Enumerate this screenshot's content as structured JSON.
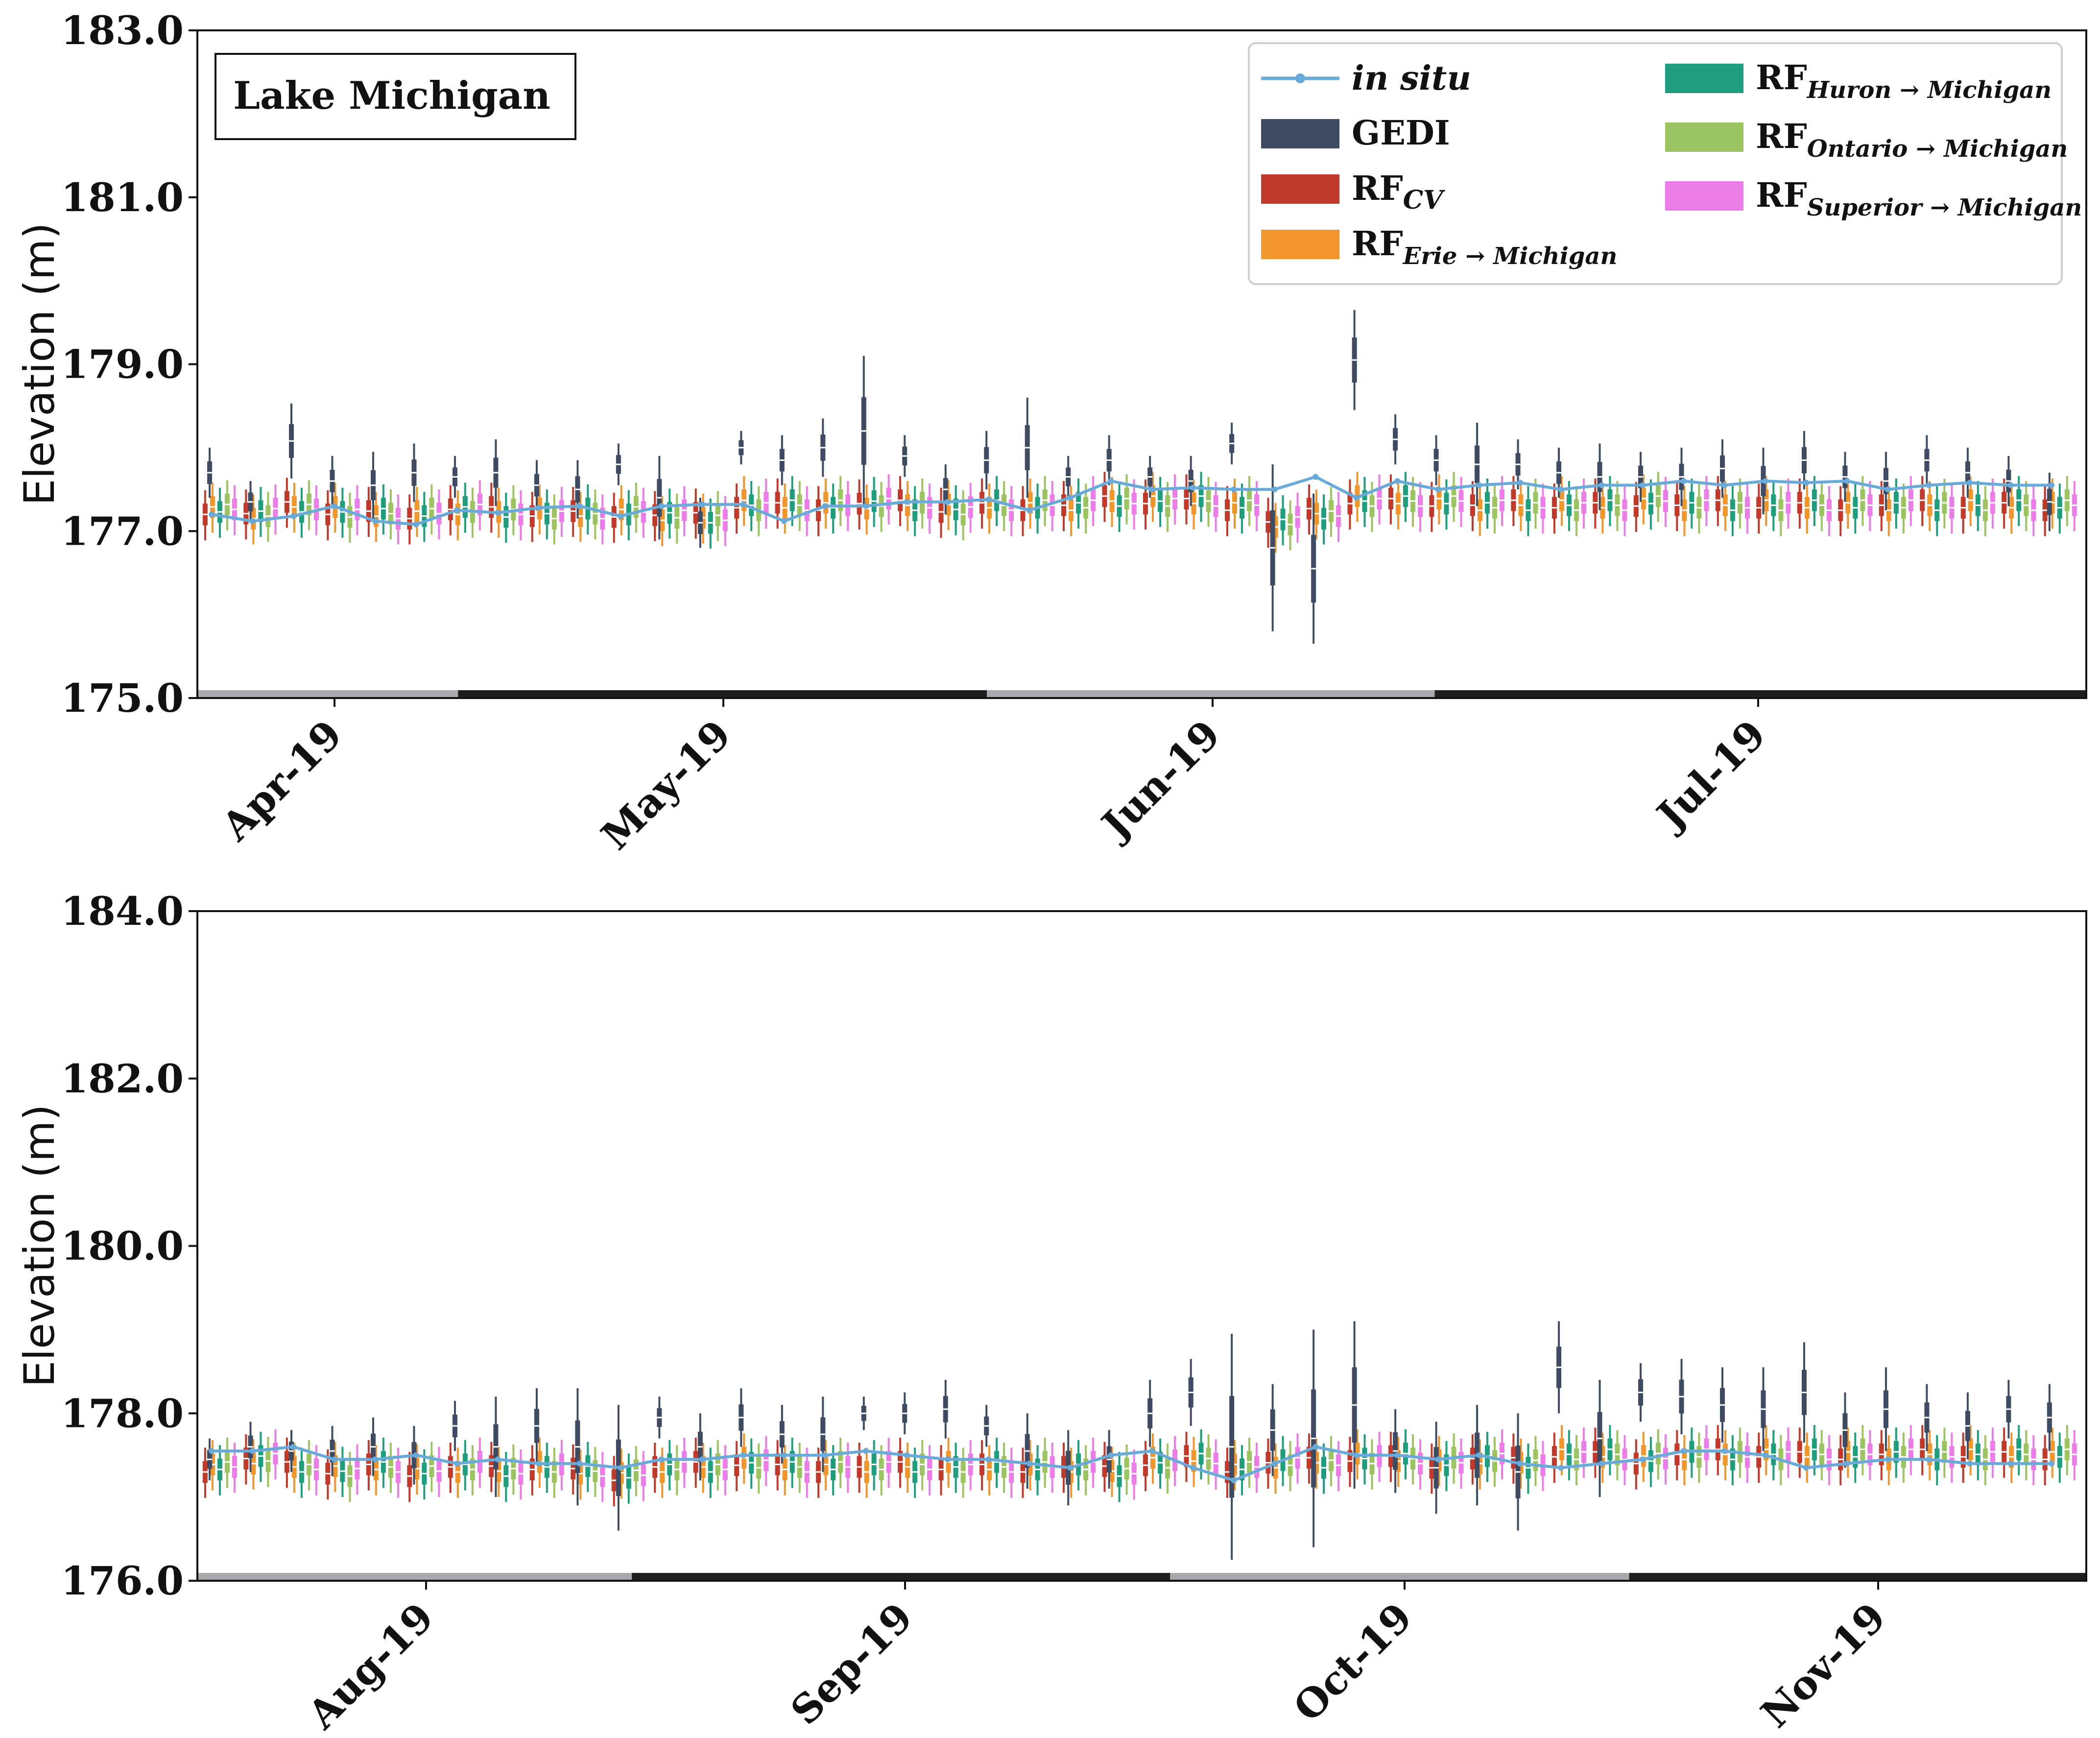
{
  "colors": {
    "in_situ": "#6aaad8",
    "GEDI": "#3f4b63",
    "RF_CV": "#c0392b",
    "RF_Erie": "#f0962d",
    "RF_Huron": "#1f9e7e",
    "RF_Ontario": "#9bc460",
    "RF_Superior": "#ec7de8",
    "month_band_light": "#a7a9ad",
    "month_band_dark": "#1f1f1f"
  },
  "legend": {
    "in_situ": "in situ",
    "GEDI": "GEDI",
    "RF_CV": {
      "main": "RF",
      "sub": "CV"
    },
    "RF_Erie": {
      "main": "RF",
      "sub": "Erie → Michigan"
    },
    "RF_Huron": {
      "main": "RF",
      "sub": "Huron → Michigan"
    },
    "RF_Ontario": {
      "main": "RF",
      "sub": "Ontario → Michigan"
    },
    "RF_Superior": {
      "main": "RF",
      "sub": "Superior → Michigan"
    }
  },
  "chart_data": [
    {
      "type": "box",
      "title": "Lake Michigan",
      "ylabel": "Elevation (m)",
      "ylim": [
        175.0,
        183.0
      ],
      "yticks": [
        "175.0",
        "177.0",
        "179.0",
        "181.0",
        "183.0"
      ],
      "xticks": [
        "Apr-19",
        "May-19",
        "Jun-19",
        "Jul-19"
      ],
      "series": [
        "in situ",
        "GEDI",
        "RF_CV",
        "RF_Erie→Michigan",
        "RF_Huron→Michigan",
        "RF_Ontario→Michigan",
        "RF_Superior→Michigan"
      ],
      "n_dates": 46,
      "in_situ": [
        177.2,
        177.12,
        177.18,
        177.3,
        177.12,
        177.08,
        177.25,
        177.22,
        177.28,
        177.3,
        177.18,
        177.3,
        177.32,
        177.32,
        177.12,
        177.3,
        177.3,
        177.35,
        177.35,
        177.38,
        177.25,
        177.4,
        177.6,
        177.5,
        177.52,
        177.5,
        177.5,
        177.65,
        177.4,
        177.6,
        177.5,
        177.55,
        177.58,
        177.5,
        177.55,
        177.55,
        177.6,
        177.55,
        177.6,
        177.58,
        177.6,
        177.5,
        177.55,
        177.58,
        177.55,
        177.55
      ],
      "GEDI_median": [
        177.7,
        177.35,
        178.08,
        177.6,
        177.55,
        177.7,
        177.65,
        177.7,
        177.55,
        177.5,
        177.8,
        177.4,
        177.1,
        178.0,
        177.85,
        178.0,
        178.2,
        177.9,
        177.5,
        177.85,
        178.0,
        177.65,
        177.85,
        177.65,
        177.6,
        178.05,
        176.8,
        176.55,
        179.05,
        178.1,
        177.85,
        177.8,
        177.8,
        177.7,
        177.65,
        177.65,
        177.65,
        177.75,
        177.6,
        177.85,
        177.65,
        177.6,
        177.85,
        177.7,
        177.6,
        177.35
      ],
      "GEDI_spread": [
        0.3,
        0.25,
        0.45,
        0.3,
        0.4,
        0.35,
        0.25,
        0.4,
        0.3,
        0.35,
        0.25,
        0.5,
        0.3,
        0.2,
        0.3,
        0.35,
        0.9,
        0.25,
        0.3,
        0.35,
        0.6,
        0.25,
        0.3,
        0.25,
        0.3,
        0.25,
        1.0,
        0.9,
        0.6,
        0.3,
        0.3,
        0.5,
        0.3,
        0.3,
        0.4,
        0.3,
        0.35,
        0.35,
        0.4,
        0.35,
        0.3,
        0.35,
        0.3,
        0.3,
        0.3,
        0.35
      ],
      "model_level": [
        177.25,
        177.2,
        177.28,
        177.22,
        177.2,
        177.2,
        177.25,
        177.22,
        177.2,
        177.2,
        177.22,
        177.18,
        177.15,
        177.3,
        177.3,
        177.3,
        177.32,
        177.3,
        177.25,
        177.3,
        177.3,
        177.3,
        177.35,
        177.35,
        177.35,
        177.3,
        177.1,
        177.2,
        177.35,
        177.35,
        177.35,
        177.3,
        177.3,
        177.3,
        177.3,
        177.35,
        177.3,
        177.3,
        177.3,
        177.3,
        177.3,
        177.3,
        177.3,
        177.3,
        177.3,
        177.3
      ],
      "month_bands": [
        {
          "from": 0,
          "to": 0.138,
          "tone": "light"
        },
        {
          "from": 0.138,
          "to": 0.418,
          "tone": "dark"
        },
        {
          "from": 0.418,
          "to": 0.655,
          "tone": "light"
        },
        {
          "from": 0.655,
          "to": 1.0,
          "tone": "dark"
        }
      ]
    },
    {
      "type": "box",
      "title": "",
      "ylabel": "Elevation (m)",
      "ylim": [
        176.0,
        184.0
      ],
      "yticks": [
        "176.0",
        "178.0",
        "180.0",
        "182.0",
        "184.0"
      ],
      "xticks": [
        "Aug-19",
        "Sep-19",
        "Oct-19",
        "Nov-19"
      ],
      "series": [
        "in situ",
        "GEDI",
        "RF_CV",
        "RF_Erie→Michigan",
        "RF_Huron→Michigan",
        "RF_Ontario→Michigan",
        "RF_Superior→Michigan"
      ],
      "n_dates": 46,
      "in_situ": [
        177.55,
        177.55,
        177.6,
        177.45,
        177.45,
        177.5,
        177.4,
        177.45,
        177.4,
        177.4,
        177.35,
        177.45,
        177.45,
        177.5,
        177.5,
        177.5,
        177.55,
        177.5,
        177.45,
        177.45,
        177.4,
        177.35,
        177.5,
        177.55,
        177.35,
        177.2,
        177.4,
        177.6,
        177.5,
        177.5,
        177.45,
        177.5,
        177.4,
        177.35,
        177.4,
        177.45,
        177.55,
        177.55,
        177.5,
        177.35,
        177.4,
        177.45,
        177.45,
        177.4,
        177.4,
        177.4
      ],
      "GEDI_median": [
        177.45,
        177.6,
        177.55,
        177.55,
        177.6,
        177.5,
        177.85,
        177.6,
        177.85,
        177.6,
        177.35,
        177.95,
        177.6,
        177.95,
        177.75,
        177.75,
        178.0,
        178.0,
        178.05,
        177.85,
        177.55,
        177.35,
        177.45,
        178.0,
        178.25,
        177.6,
        177.8,
        177.7,
        178.1,
        177.55,
        177.35,
        177.5,
        177.3,
        178.55,
        177.7,
        178.25,
        178.2,
        178.1,
        178.05,
        178.25,
        177.8,
        178.05,
        177.95,
        177.85,
        178.05,
        177.95
      ],
      "GEDI_spread": [
        0.25,
        0.3,
        0.25,
        0.3,
        0.35,
        0.35,
        0.3,
        0.6,
        0.45,
        0.7,
        0.75,
        0.25,
        0.4,
        0.35,
        0.35,
        0.45,
        0.2,
        0.25,
        0.35,
        0.25,
        0.45,
        0.45,
        0.35,
        0.4,
        0.4,
        1.35,
        0.55,
        1.3,
        1.0,
        0.5,
        0.55,
        0.6,
        0.7,
        0.55,
        0.7,
        0.35,
        0.45,
        0.45,
        0.5,
        0.6,
        0.45,
        0.5,
        0.4,
        0.4,
        0.35,
        0.4
      ],
      "model_level": [
        177.35,
        177.45,
        177.35,
        177.3,
        177.35,
        177.3,
        177.35,
        177.3,
        177.35,
        177.3,
        177.25,
        177.35,
        177.35,
        177.4,
        177.35,
        177.35,
        177.35,
        177.35,
        177.35,
        177.35,
        177.35,
        177.35,
        177.3,
        177.4,
        177.45,
        177.35,
        177.4,
        177.4,
        177.45,
        177.45,
        177.4,
        177.45,
        177.4,
        177.5,
        177.5,
        177.45,
        177.5,
        177.5,
        177.5,
        177.5,
        177.5,
        177.5,
        177.5,
        177.5,
        177.5,
        177.5
      ],
      "month_bands": [
        {
          "from": 0,
          "to": 0.23,
          "tone": "light"
        },
        {
          "from": 0.23,
          "to": 0.515,
          "tone": "dark"
        },
        {
          "from": 0.515,
          "to": 0.758,
          "tone": "light"
        },
        {
          "from": 0.758,
          "to": 1.0,
          "tone": "dark"
        }
      ]
    }
  ]
}
